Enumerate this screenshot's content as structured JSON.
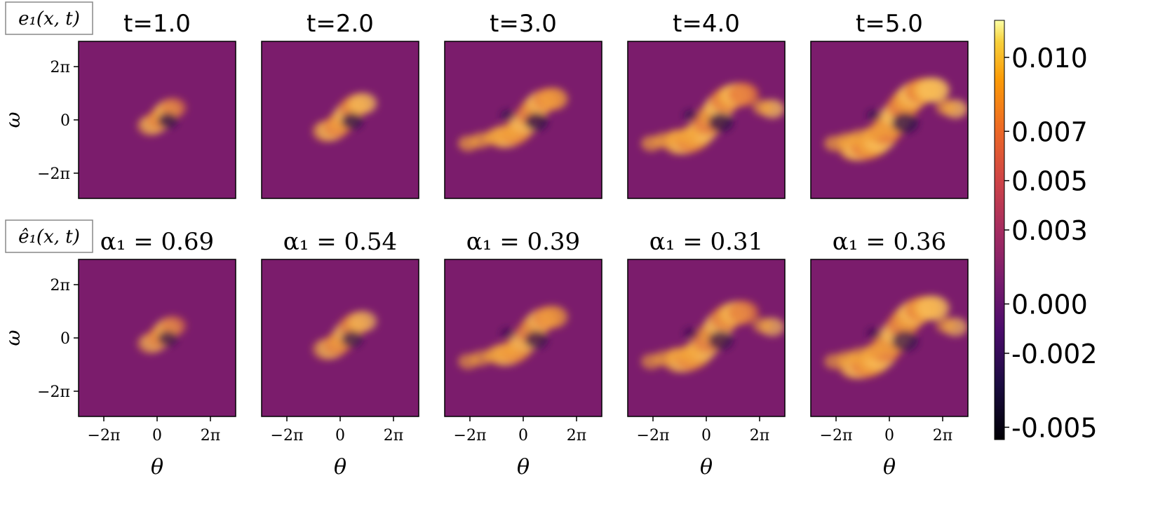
{
  "chart_data": {
    "type": "heatmap",
    "colormap": "inferno",
    "colorbar": {
      "ticks": [
        "0.010",
        "0.007",
        "0.005",
        "0.003",
        "0.000",
        "-0.002",
        "-0.005"
      ],
      "tick_values": [
        0.01,
        0.007,
        0.005,
        0.003,
        0.0,
        -0.002,
        -0.005
      ],
      "range": [
        -0.0055,
        0.0115
      ]
    },
    "xlabel": "θ",
    "ylabel": "ω",
    "x_ticks": [
      "−2π",
      "0",
      "2π"
    ],
    "y_ticks": [
      "2π",
      "0",
      "−2π"
    ],
    "rows": [
      {
        "label": "e₁(x, t)",
        "panels": [
          {
            "title": "t=1.0"
          },
          {
            "title": "t=2.0"
          },
          {
            "title": "t=3.0"
          },
          {
            "title": "t=4.0"
          },
          {
            "title": "t=5.0"
          }
        ]
      },
      {
        "label": "ê₁(x, t)",
        "panels": [
          {
            "title": "α₁ = 0.69"
          },
          {
            "title": "α₁ = 0.54"
          },
          {
            "title": "α₁ = 0.39"
          },
          {
            "title": "α₁ = 0.31"
          },
          {
            "title": "α₁ = 0.36"
          }
        ]
      }
    ]
  }
}
